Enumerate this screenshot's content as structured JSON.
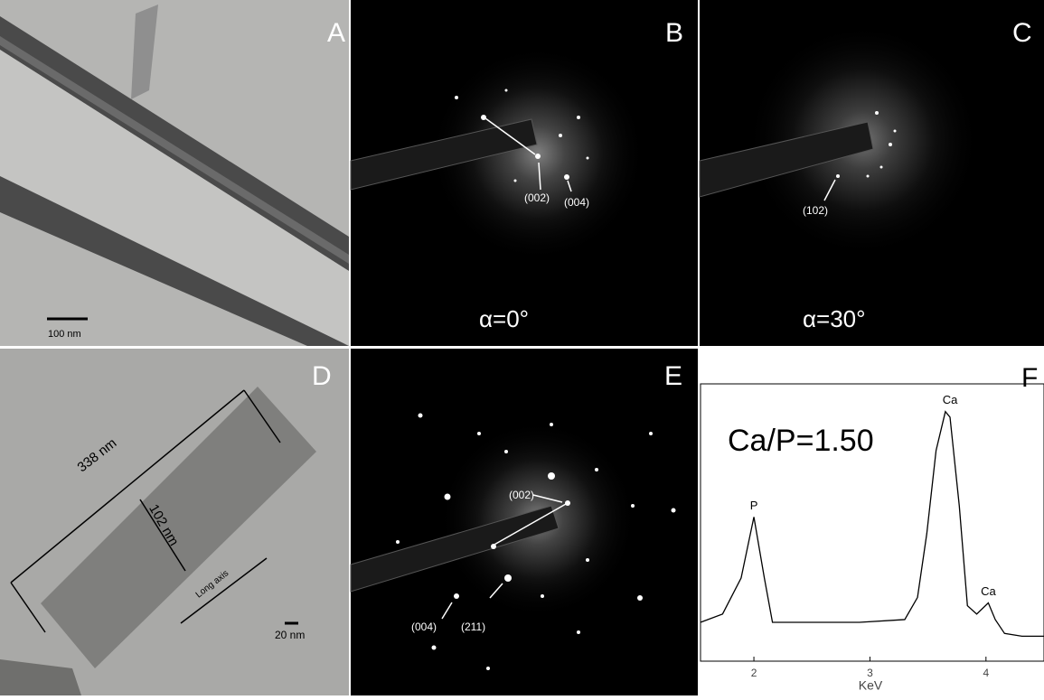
{
  "panels": [
    {
      "label": "A",
      "scale_bar": "100 nm"
    },
    {
      "label": "B",
      "annotations": [
        "(002)",
        "(004)"
      ],
      "tilt": "α=0°"
    },
    {
      "label": "C",
      "annotations": [
        "(102)"
      ],
      "tilt": "α=30°"
    },
    {
      "label": "D",
      "annotations": [
        "338 nm",
        "102 nm",
        "Long axis"
      ],
      "scale_bar": "20 nm"
    },
    {
      "label": "E",
      "annotations": [
        "(002)",
        "(004)",
        "(211)"
      ]
    },
    {
      "label": "F"
    }
  ],
  "chart_data": {
    "type": "line",
    "x_label": "KeV",
    "ratio_text": "Ca/P=1.50",
    "peak_labels": [
      "P",
      "Ca",
      "Ca"
    ],
    "x": [
      1.54,
      1.73,
      1.89,
      2.0,
      2.09,
      2.16,
      2.52,
      2.91,
      3.3,
      3.41,
      3.49,
      3.57,
      3.65,
      3.69,
      3.77,
      3.84,
      3.92,
      4.02,
      4.08,
      4.16,
      4.31,
      4.5
    ],
    "series": [
      {
        "color": "#000000",
        "values": [
          14,
          17,
          30,
          52,
          30,
          14,
          14,
          14,
          15,
          23,
          46,
          76,
          90,
          88,
          56,
          20,
          17,
          21,
          15,
          10,
          9,
          9
        ]
      }
    ],
    "xlim": [
      1.54,
      4.5
    ],
    "xticks": [
      2,
      3,
      4
    ],
    "ylim": [
      0,
      100
    ]
  }
}
